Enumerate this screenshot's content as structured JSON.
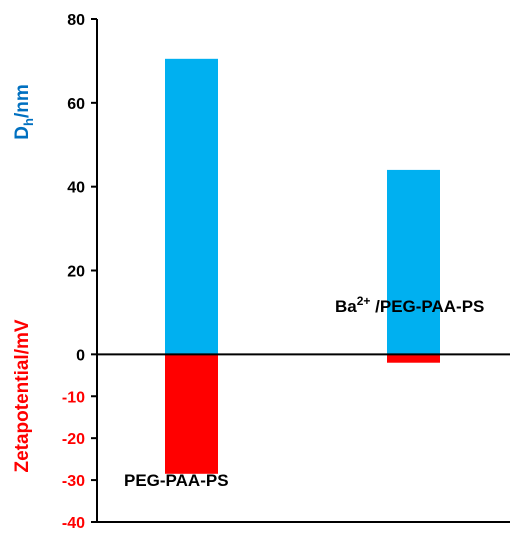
{
  "chart_data": {
    "type": "bar",
    "categories": [
      "PEG-PAA-PS",
      "Ba2+/PEG-PAA-PS"
    ],
    "category_labels": [
      {
        "main": "PEG-PAA-PS",
        "sup": ""
      },
      {
        "prefix": "Ba",
        "sup": "2+",
        "suffix": " /PEG-PAA-PS"
      }
    ],
    "series": [
      {
        "key": "dh",
        "values": [
          70.5,
          44
        ],
        "color": "#00b0f0"
      },
      {
        "key": "zeta",
        "values": [
          -28.5,
          -2
        ],
        "color": "#ff0000"
      }
    ],
    "ylim": [
      -40,
      80
    ],
    "yticks": [
      80,
      60,
      40,
      20,
      0,
      -10,
      -20,
      -30,
      -40
    ],
    "ylabel_upper": {
      "main": "D",
      "sub": "h",
      "suffix": "/nm",
      "color": "#0070c0"
    },
    "ylabel_lower": {
      "text": "Zetapotential/mV",
      "color": "#ff0000"
    },
    "tick_colors": {
      "positive": "#000000",
      "negative": "#ff0000"
    },
    "grid": false,
    "legend": "none"
  }
}
